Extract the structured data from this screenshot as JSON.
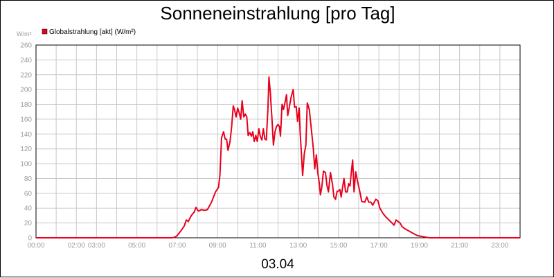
{
  "chart_data": {
    "type": "line",
    "title": "Sonneneinstrahlung [pro Tag]",
    "date_label": "03.04",
    "ylabel": "W/m²",
    "ylim": [
      0,
      260
    ],
    "y_ticks": [
      0,
      20,
      40,
      60,
      80,
      100,
      120,
      140,
      160,
      180,
      200,
      220,
      240,
      260
    ],
    "x_range_hours": [
      0,
      24
    ],
    "x_ticks": [
      {
        "h": 0,
        "label": "00:00"
      },
      {
        "h": 2,
        "label": "02:00"
      },
      {
        "h": 3,
        "label": "03:00"
      },
      {
        "h": 5,
        "label": "05:00"
      },
      {
        "h": 7,
        "label": "07:00"
      },
      {
        "h": 9,
        "label": "09:00"
      },
      {
        "h": 11,
        "label": "11:00"
      },
      {
        "h": 13,
        "label": "13:00"
      },
      {
        "h": 15,
        "label": "15:00"
      },
      {
        "h": 17,
        "label": "17:00"
      },
      {
        "h": 19,
        "label": "19:00"
      },
      {
        "h": 21,
        "label": "21:00"
      },
      {
        "h": 23,
        "label": "23:00"
      }
    ],
    "grid": true,
    "legend_position": "top-left",
    "series": [
      {
        "name": "Globalstrahlung [akt] (W/m²)",
        "color": "#e8001c",
        "points": [
          [
            0,
            0
          ],
          [
            6.75,
            0
          ],
          [
            6.9,
            1
          ],
          [
            7.0,
            3
          ],
          [
            7.2,
            10
          ],
          [
            7.35,
            16
          ],
          [
            7.45,
            24
          ],
          [
            7.55,
            22
          ],
          [
            7.7,
            30
          ],
          [
            7.85,
            35
          ],
          [
            7.93,
            41
          ],
          [
            8.05,
            36
          ],
          [
            8.2,
            38
          ],
          [
            8.35,
            37
          ],
          [
            8.5,
            38
          ],
          [
            8.7,
            48
          ],
          [
            8.9,
            62
          ],
          [
            9.05,
            68
          ],
          [
            9.12,
            85
          ],
          [
            9.2,
            135
          ],
          [
            9.3,
            143
          ],
          [
            9.38,
            133
          ],
          [
            9.45,
            133
          ],
          [
            9.52,
            118
          ],
          [
            9.62,
            130
          ],
          [
            9.7,
            150
          ],
          [
            9.78,
            178
          ],
          [
            9.85,
            172
          ],
          [
            9.92,
            163
          ],
          [
            10.0,
            175
          ],
          [
            10.08,
            168
          ],
          [
            10.15,
            160
          ],
          [
            10.22,
            185
          ],
          [
            10.3,
            163
          ],
          [
            10.38,
            167
          ],
          [
            10.45,
            163
          ],
          [
            10.52,
            138
          ],
          [
            10.6,
            142
          ],
          [
            10.68,
            137
          ],
          [
            10.75,
            143
          ],
          [
            10.82,
            130
          ],
          [
            10.9,
            138
          ],
          [
            10.97,
            130
          ],
          [
            11.05,
            147
          ],
          [
            11.12,
            137
          ],
          [
            11.2,
            132
          ],
          [
            11.27,
            147
          ],
          [
            11.35,
            133
          ],
          [
            11.42,
            132
          ],
          [
            11.5,
            175
          ],
          [
            11.55,
            217
          ],
          [
            11.62,
            195
          ],
          [
            11.7,
            160
          ],
          [
            11.77,
            125
          ],
          [
            11.85,
            143
          ],
          [
            11.92,
            150
          ],
          [
            12.0,
            153
          ],
          [
            12.07,
            150
          ],
          [
            12.12,
            137
          ],
          [
            12.2,
            180
          ],
          [
            12.27,
            173
          ],
          [
            12.35,
            183
          ],
          [
            12.42,
            193
          ],
          [
            12.48,
            165
          ],
          [
            12.55,
            175
          ],
          [
            12.65,
            190
          ],
          [
            12.75,
            200
          ],
          [
            12.82,
            176
          ],
          [
            12.9,
            177
          ],
          [
            12.97,
            157
          ],
          [
            13.05,
            175
          ],
          [
            13.1,
            140
          ],
          [
            13.15,
            118
          ],
          [
            13.22,
            84
          ],
          [
            13.3,
            113
          ],
          [
            13.38,
            125
          ],
          [
            13.45,
            182
          ],
          [
            13.55,
            173
          ],
          [
            13.65,
            147
          ],
          [
            13.75,
            120
          ],
          [
            13.82,
            93
          ],
          [
            13.9,
            112
          ],
          [
            13.97,
            88
          ],
          [
            14.05,
            73
          ],
          [
            14.1,
            58
          ],
          [
            14.17,
            68
          ],
          [
            14.25,
            90
          ],
          [
            14.35,
            88
          ],
          [
            14.43,
            70
          ],
          [
            14.5,
            62
          ],
          [
            14.6,
            88
          ],
          [
            14.7,
            72
          ],
          [
            14.77,
            55
          ],
          [
            14.85,
            52
          ],
          [
            14.93,
            63
          ],
          [
            15.0,
            63
          ],
          [
            15.07,
            65
          ],
          [
            15.13,
            55
          ],
          [
            15.2,
            68
          ],
          [
            15.27,
            80
          ],
          [
            15.35,
            62
          ],
          [
            15.43,
            62
          ],
          [
            15.5,
            73
          ],
          [
            15.57,
            70
          ],
          [
            15.62,
            85
          ],
          [
            15.7,
            105
          ],
          [
            15.77,
            62
          ],
          [
            15.85,
            89
          ],
          [
            15.95,
            75
          ],
          [
            16.05,
            63
          ],
          [
            16.15,
            49
          ],
          [
            16.3,
            48
          ],
          [
            16.4,
            55
          ],
          [
            16.5,
            48
          ],
          [
            16.6,
            48
          ],
          [
            16.7,
            44
          ],
          [
            16.77,
            48
          ],
          [
            16.85,
            52
          ],
          [
            16.95,
            50
          ],
          [
            17.05,
            40
          ],
          [
            17.2,
            33
          ],
          [
            17.35,
            28
          ],
          [
            17.5,
            24
          ],
          [
            17.65,
            20
          ],
          [
            17.75,
            17
          ],
          [
            17.85,
            24
          ],
          [
            17.95,
            22
          ],
          [
            18.05,
            20
          ],
          [
            18.15,
            15
          ],
          [
            18.3,
            12
          ],
          [
            18.5,
            9
          ],
          [
            18.7,
            6
          ],
          [
            18.9,
            3
          ],
          [
            19.1,
            2
          ],
          [
            19.3,
            1
          ],
          [
            19.5,
            0
          ],
          [
            24,
            0
          ]
        ]
      }
    ]
  }
}
